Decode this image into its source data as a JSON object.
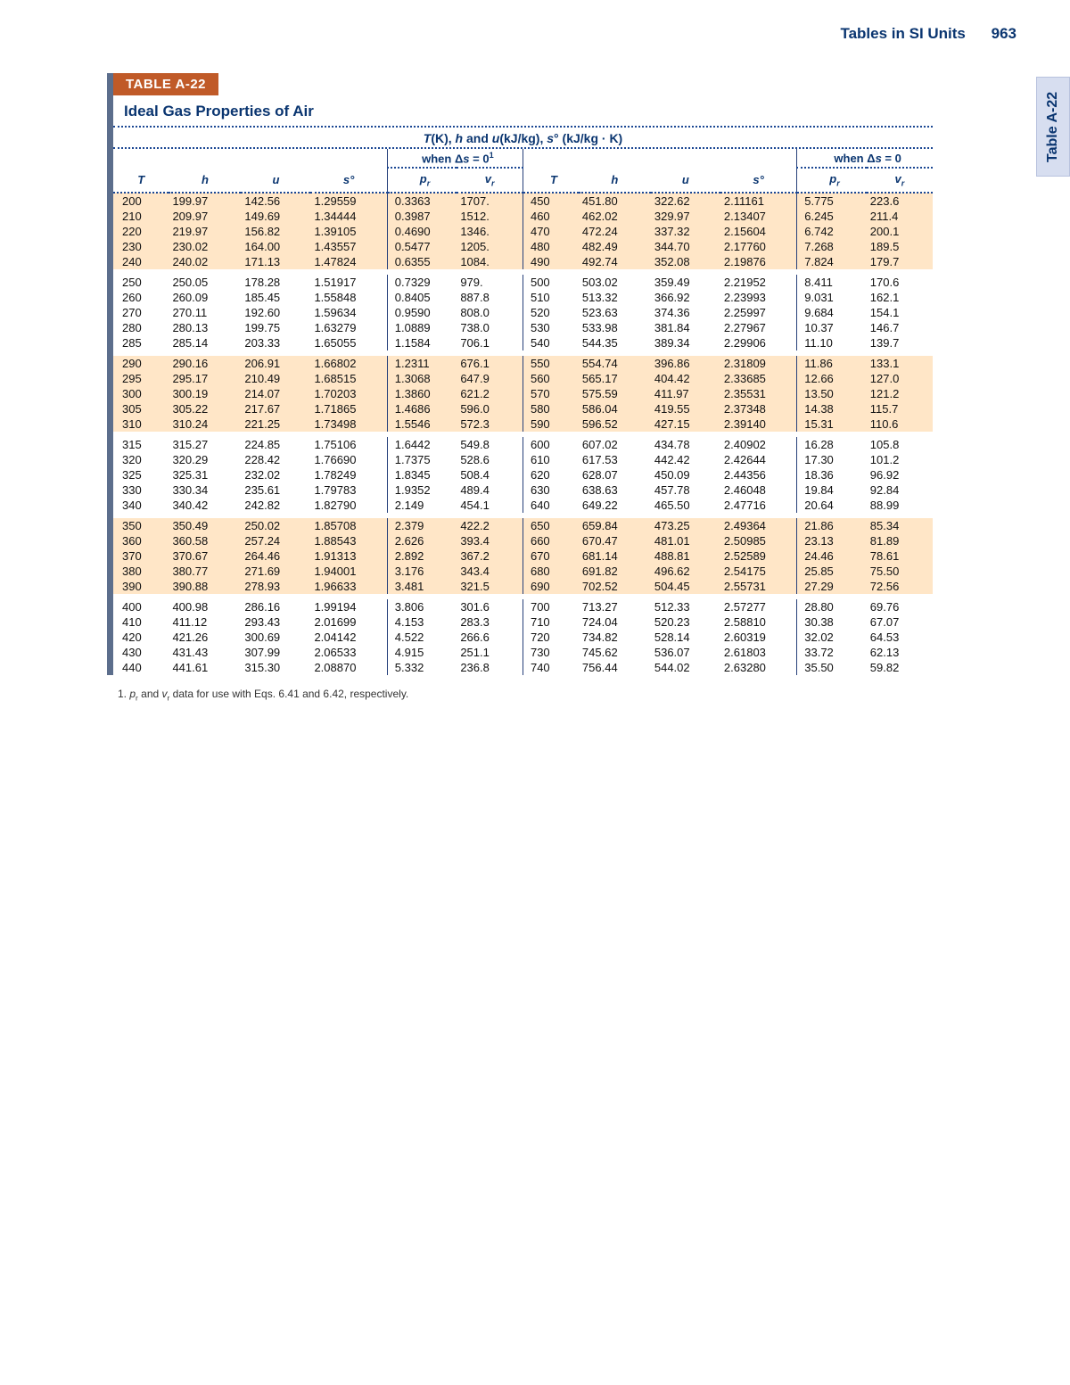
{
  "runningHead": {
    "title": "Tables in SI Units",
    "page": "963"
  },
  "sideTab": "Table A-22",
  "tableLabel": "TABLE A-22",
  "tableTitle": "Ideal Gas Properties of Air",
  "superHeader": "T(K), h and u(kJ/kg), s° (kJ/kg · K)",
  "subHeaders": {
    "left": "when Δs = 0",
    "right": "when Δs = 0"
  },
  "colHeaders": [
    "T",
    "h",
    "u",
    "s°",
    "p_r",
    "v_r",
    "T",
    "h",
    "u",
    "s°",
    "p_r",
    "v_r"
  ],
  "footnote": "1. p_r and v_r data for use with Eqs. 6.41 and 6.42, respectively.",
  "colors": {
    "accent": "#0a3570",
    "band": "#ffe6c7",
    "labelBar": "#c05a28",
    "sideTabBg": "#d7def0",
    "frameBorder": "#5c6e8c"
  },
  "groups": [
    [
      [
        "200",
        "199.97",
        "142.56",
        "1.29559",
        "0.3363",
        "1707.",
        "450",
        "451.80",
        "322.62",
        "2.11161",
        "5.775",
        "223.6"
      ],
      [
        "210",
        "209.97",
        "149.69",
        "1.34444",
        "0.3987",
        "1512.",
        "460",
        "462.02",
        "329.97",
        "2.13407",
        "6.245",
        "211.4"
      ],
      [
        "220",
        "219.97",
        "156.82",
        "1.39105",
        "0.4690",
        "1346.",
        "470",
        "472.24",
        "337.32",
        "2.15604",
        "6.742",
        "200.1"
      ],
      [
        "230",
        "230.02",
        "164.00",
        "1.43557",
        "0.5477",
        "1205.",
        "480",
        "482.49",
        "344.70",
        "2.17760",
        "7.268",
        "189.5"
      ],
      [
        "240",
        "240.02",
        "171.13",
        "1.47824",
        "0.6355",
        "1084.",
        "490",
        "492.74",
        "352.08",
        "2.19876",
        "7.824",
        "179.7"
      ]
    ],
    [
      [
        "250",
        "250.05",
        "178.28",
        "1.51917",
        "0.7329",
        "979.",
        "500",
        "503.02",
        "359.49",
        "2.21952",
        "8.411",
        "170.6"
      ],
      [
        "260",
        "260.09",
        "185.45",
        "1.55848",
        "0.8405",
        "887.8",
        "510",
        "513.32",
        "366.92",
        "2.23993",
        "9.031",
        "162.1"
      ],
      [
        "270",
        "270.11",
        "192.60",
        "1.59634",
        "0.9590",
        "808.0",
        "520",
        "523.63",
        "374.36",
        "2.25997",
        "9.684",
        "154.1"
      ],
      [
        "280",
        "280.13",
        "199.75",
        "1.63279",
        "1.0889",
        "738.0",
        "530",
        "533.98",
        "381.84",
        "2.27967",
        "10.37",
        "146.7"
      ],
      [
        "285",
        "285.14",
        "203.33",
        "1.65055",
        "1.1584",
        "706.1",
        "540",
        "544.35",
        "389.34",
        "2.29906",
        "11.10",
        "139.7"
      ]
    ],
    [
      [
        "290",
        "290.16",
        "206.91",
        "1.66802",
        "1.2311",
        "676.1",
        "550",
        "554.74",
        "396.86",
        "2.31809",
        "11.86",
        "133.1"
      ],
      [
        "295",
        "295.17",
        "210.49",
        "1.68515",
        "1.3068",
        "647.9",
        "560",
        "565.17",
        "404.42",
        "2.33685",
        "12.66",
        "127.0"
      ],
      [
        "300",
        "300.19",
        "214.07",
        "1.70203",
        "1.3860",
        "621.2",
        "570",
        "575.59",
        "411.97",
        "2.35531",
        "13.50",
        "121.2"
      ],
      [
        "305",
        "305.22",
        "217.67",
        "1.71865",
        "1.4686",
        "596.0",
        "580",
        "586.04",
        "419.55",
        "2.37348",
        "14.38",
        "115.7"
      ],
      [
        "310",
        "310.24",
        "221.25",
        "1.73498",
        "1.5546",
        "572.3",
        "590",
        "596.52",
        "427.15",
        "2.39140",
        "15.31",
        "110.6"
      ]
    ],
    [
      [
        "315",
        "315.27",
        "224.85",
        "1.75106",
        "1.6442",
        "549.8",
        "600",
        "607.02",
        "434.78",
        "2.40902",
        "16.28",
        "105.8"
      ],
      [
        "320",
        "320.29",
        "228.42",
        "1.76690",
        "1.7375",
        "528.6",
        "610",
        "617.53",
        "442.42",
        "2.42644",
        "17.30",
        "101.2"
      ],
      [
        "325",
        "325.31",
        "232.02",
        "1.78249",
        "1.8345",
        "508.4",
        "620",
        "628.07",
        "450.09",
        "2.44356",
        "18.36",
        "96.92"
      ],
      [
        "330",
        "330.34",
        "235.61",
        "1.79783",
        "1.9352",
        "489.4",
        "630",
        "638.63",
        "457.78",
        "2.46048",
        "19.84",
        "92.84"
      ],
      [
        "340",
        "340.42",
        "242.82",
        "1.82790",
        "2.149",
        "454.1",
        "640",
        "649.22",
        "465.50",
        "2.47716",
        "20.64",
        "88.99"
      ]
    ],
    [
      [
        "350",
        "350.49",
        "250.02",
        "1.85708",
        "2.379",
        "422.2",
        "650",
        "659.84",
        "473.25",
        "2.49364",
        "21.86",
        "85.34"
      ],
      [
        "360",
        "360.58",
        "257.24",
        "1.88543",
        "2.626",
        "393.4",
        "660",
        "670.47",
        "481.01",
        "2.50985",
        "23.13",
        "81.89"
      ],
      [
        "370",
        "370.67",
        "264.46",
        "1.91313",
        "2.892",
        "367.2",
        "670",
        "681.14",
        "488.81",
        "2.52589",
        "24.46",
        "78.61"
      ],
      [
        "380",
        "380.77",
        "271.69",
        "1.94001",
        "3.176",
        "343.4",
        "680",
        "691.82",
        "496.62",
        "2.54175",
        "25.85",
        "75.50"
      ],
      [
        "390",
        "390.88",
        "278.93",
        "1.96633",
        "3.481",
        "321.5",
        "690",
        "702.52",
        "504.45",
        "2.55731",
        "27.29",
        "72.56"
      ]
    ],
    [
      [
        "400",
        "400.98",
        "286.16",
        "1.99194",
        "3.806",
        "301.6",
        "700",
        "713.27",
        "512.33",
        "2.57277",
        "28.80",
        "69.76"
      ],
      [
        "410",
        "411.12",
        "293.43",
        "2.01699",
        "4.153",
        "283.3",
        "710",
        "724.04",
        "520.23",
        "2.58810",
        "30.38",
        "67.07"
      ],
      [
        "420",
        "421.26",
        "300.69",
        "2.04142",
        "4.522",
        "266.6",
        "720",
        "734.82",
        "528.14",
        "2.60319",
        "32.02",
        "64.53"
      ],
      [
        "430",
        "431.43",
        "307.99",
        "2.06533",
        "4.915",
        "251.1",
        "730",
        "745.62",
        "536.07",
        "2.61803",
        "33.72",
        "62.13"
      ],
      [
        "440",
        "441.61",
        "315.30",
        "2.08870",
        "5.332",
        "236.8",
        "740",
        "756.44",
        "544.02",
        "2.63280",
        "35.50",
        "59.82"
      ]
    ]
  ]
}
